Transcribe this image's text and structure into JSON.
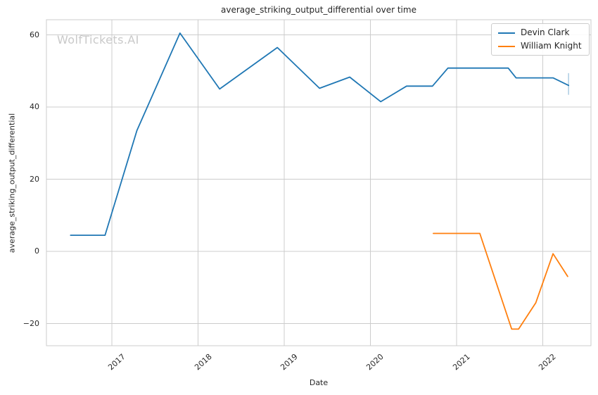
{
  "watermark": "WolfTickets.AI",
  "figure": {
    "background_color": "#ffffff",
    "text_color": "#262626",
    "grid_color": "#cccccc",
    "watermark_color": "#c9c9c9"
  },
  "chart_data": {
    "type": "line",
    "title": "average_striking_output_differential over time",
    "xlabel": "Date",
    "ylabel": "average_striking_output_differential",
    "grid": true,
    "legend_position": "upper right",
    "x_range": [
      2016.24,
      2022.56
    ],
    "y_range": [
      -26.1,
      64.2
    ],
    "x_ticks": [
      2017,
      2018,
      2019,
      2020,
      2021,
      2022
    ],
    "x_tick_labels": [
      "2017",
      "2018",
      "2019",
      "2020",
      "2021",
      "2022"
    ],
    "y_ticks": [
      -20,
      0,
      20,
      40,
      60
    ],
    "y_tick_labels": [
      "−20",
      "0",
      "20",
      "40",
      "60"
    ],
    "series": [
      {
        "name": "Devin Clark",
        "color": "#1f77b4",
        "points": [
          [
            2016.52,
            4.5
          ],
          [
            2016.92,
            4.5
          ],
          [
            2017.29,
            33.5
          ],
          [
            2017.79,
            60.5
          ],
          [
            2018.25,
            45.0
          ],
          [
            2018.92,
            56.5
          ],
          [
            2019.41,
            45.2
          ],
          [
            2019.76,
            48.3
          ],
          [
            2020.12,
            41.5
          ],
          [
            2020.42,
            45.8
          ],
          [
            2020.72,
            45.8
          ],
          [
            2020.9,
            50.8
          ],
          [
            2021.6,
            50.8
          ],
          [
            2021.69,
            48.1
          ],
          [
            2022.12,
            48.1
          ],
          [
            2022.3,
            46.0
          ]
        ]
      },
      {
        "name": "William Knight",
        "color": "#ff7f0e",
        "points": [
          [
            2020.73,
            5.0
          ],
          [
            2021.27,
            5.0
          ],
          [
            2021.64,
            -21.5
          ],
          [
            2021.72,
            -21.5
          ],
          [
            2021.92,
            -14.2
          ],
          [
            2022.12,
            -0.6
          ],
          [
            2022.29,
            -6.9
          ]
        ]
      }
    ],
    "end_tick_marker": {
      "x": 2022.3,
      "y_low": 43.4,
      "y_high": 49.4,
      "color": "#1f77b4",
      "opacity": 0.35
    }
  }
}
